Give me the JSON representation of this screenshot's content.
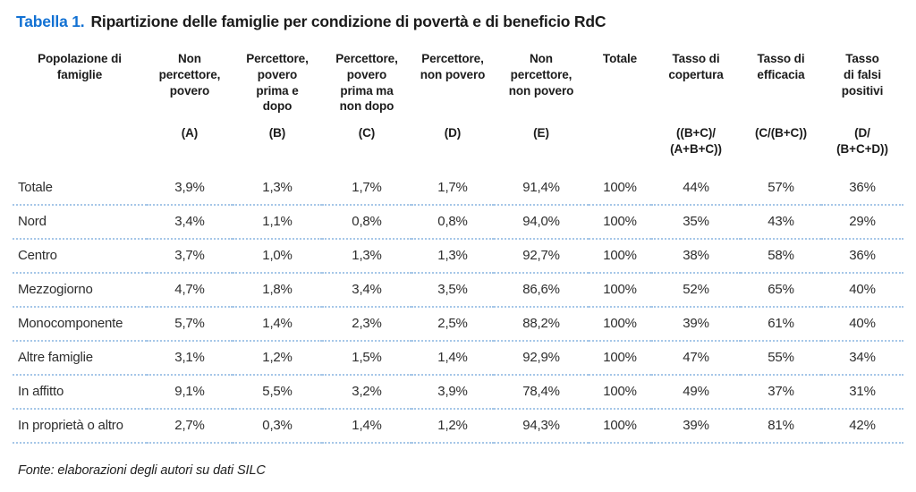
{
  "title": {
    "label": "Tabella 1.",
    "text": "Ripartizione delle famiglie per condizione di povertà e di beneficio RdC"
  },
  "table": {
    "columns": [
      {
        "label": "Popolazione di\nfamiglie",
        "code": ""
      },
      {
        "label": "Non\npercettore,\npovero",
        "code": "(A)"
      },
      {
        "label": "Percettore,\npovero\nprima e\ndopo",
        "code": "(B)"
      },
      {
        "label": "Percettore,\npovero\nprima ma\nnon dopo",
        "code": "(C)"
      },
      {
        "label": "Percettore,\nnon povero",
        "code": "(D)"
      },
      {
        "label": "Non\npercettore,\nnon povero",
        "code": "(E)"
      },
      {
        "label": "Totale",
        "code": ""
      },
      {
        "label": "Tasso di\ncopertura",
        "code": "((B+C)/\n(A+B+C))"
      },
      {
        "label": "Tasso di\nefficacia",
        "code": "(C/(B+C))"
      },
      {
        "label": "Tasso\ndi falsi\npositivi",
        "code": "(D/\n(B+C+D))"
      }
    ],
    "rows": [
      {
        "label": "Totale",
        "values": [
          "3,9%",
          "1,3%",
          "1,7%",
          "1,7%",
          "91,4%",
          "100%",
          "44%",
          "57%",
          "36%"
        ]
      },
      {
        "label": "Nord",
        "values": [
          "3,4%",
          "1,1%",
          "0,8%",
          "0,8%",
          "94,0%",
          "100%",
          "35%",
          "43%",
          "29%"
        ]
      },
      {
        "label": "Centro",
        "values": [
          "3,7%",
          "1,0%",
          "1,3%",
          "1,3%",
          "92,7%",
          "100%",
          "38%",
          "58%",
          "36%"
        ]
      },
      {
        "label": "Mezzogiorno",
        "values": [
          "4,7%",
          "1,8%",
          "3,4%",
          "3,5%",
          "86,6%",
          "100%",
          "52%",
          "65%",
          "40%"
        ]
      },
      {
        "label": "Monocomponente",
        "values": [
          "5,7%",
          "1,4%",
          "2,3%",
          "2,5%",
          "88,2%",
          "100%",
          "39%",
          "61%",
          "40%"
        ]
      },
      {
        "label": "Altre famiglie",
        "values": [
          "3,1%",
          "1,2%",
          "1,5%",
          "1,4%",
          "92,9%",
          "100%",
          "47%",
          "55%",
          "34%"
        ]
      },
      {
        "label": "In affitto",
        "values": [
          "9,1%",
          "5,5%",
          "3,2%",
          "3,9%",
          "78,4%",
          "100%",
          "49%",
          "37%",
          "31%"
        ]
      },
      {
        "label": "In proprietà o altro",
        "values": [
          "2,7%",
          "0,3%",
          "1,4%",
          "1,2%",
          "94,3%",
          "100%",
          "39%",
          "81%",
          "42%"
        ]
      }
    ]
  },
  "footer": {
    "source": "Fonte: elaborazioni degli autori su dati SILC"
  },
  "colors": {
    "accent_blue": "#1271d3",
    "separator_blue": "#a6c7e8",
    "text_dark": "#1b1b1b"
  }
}
